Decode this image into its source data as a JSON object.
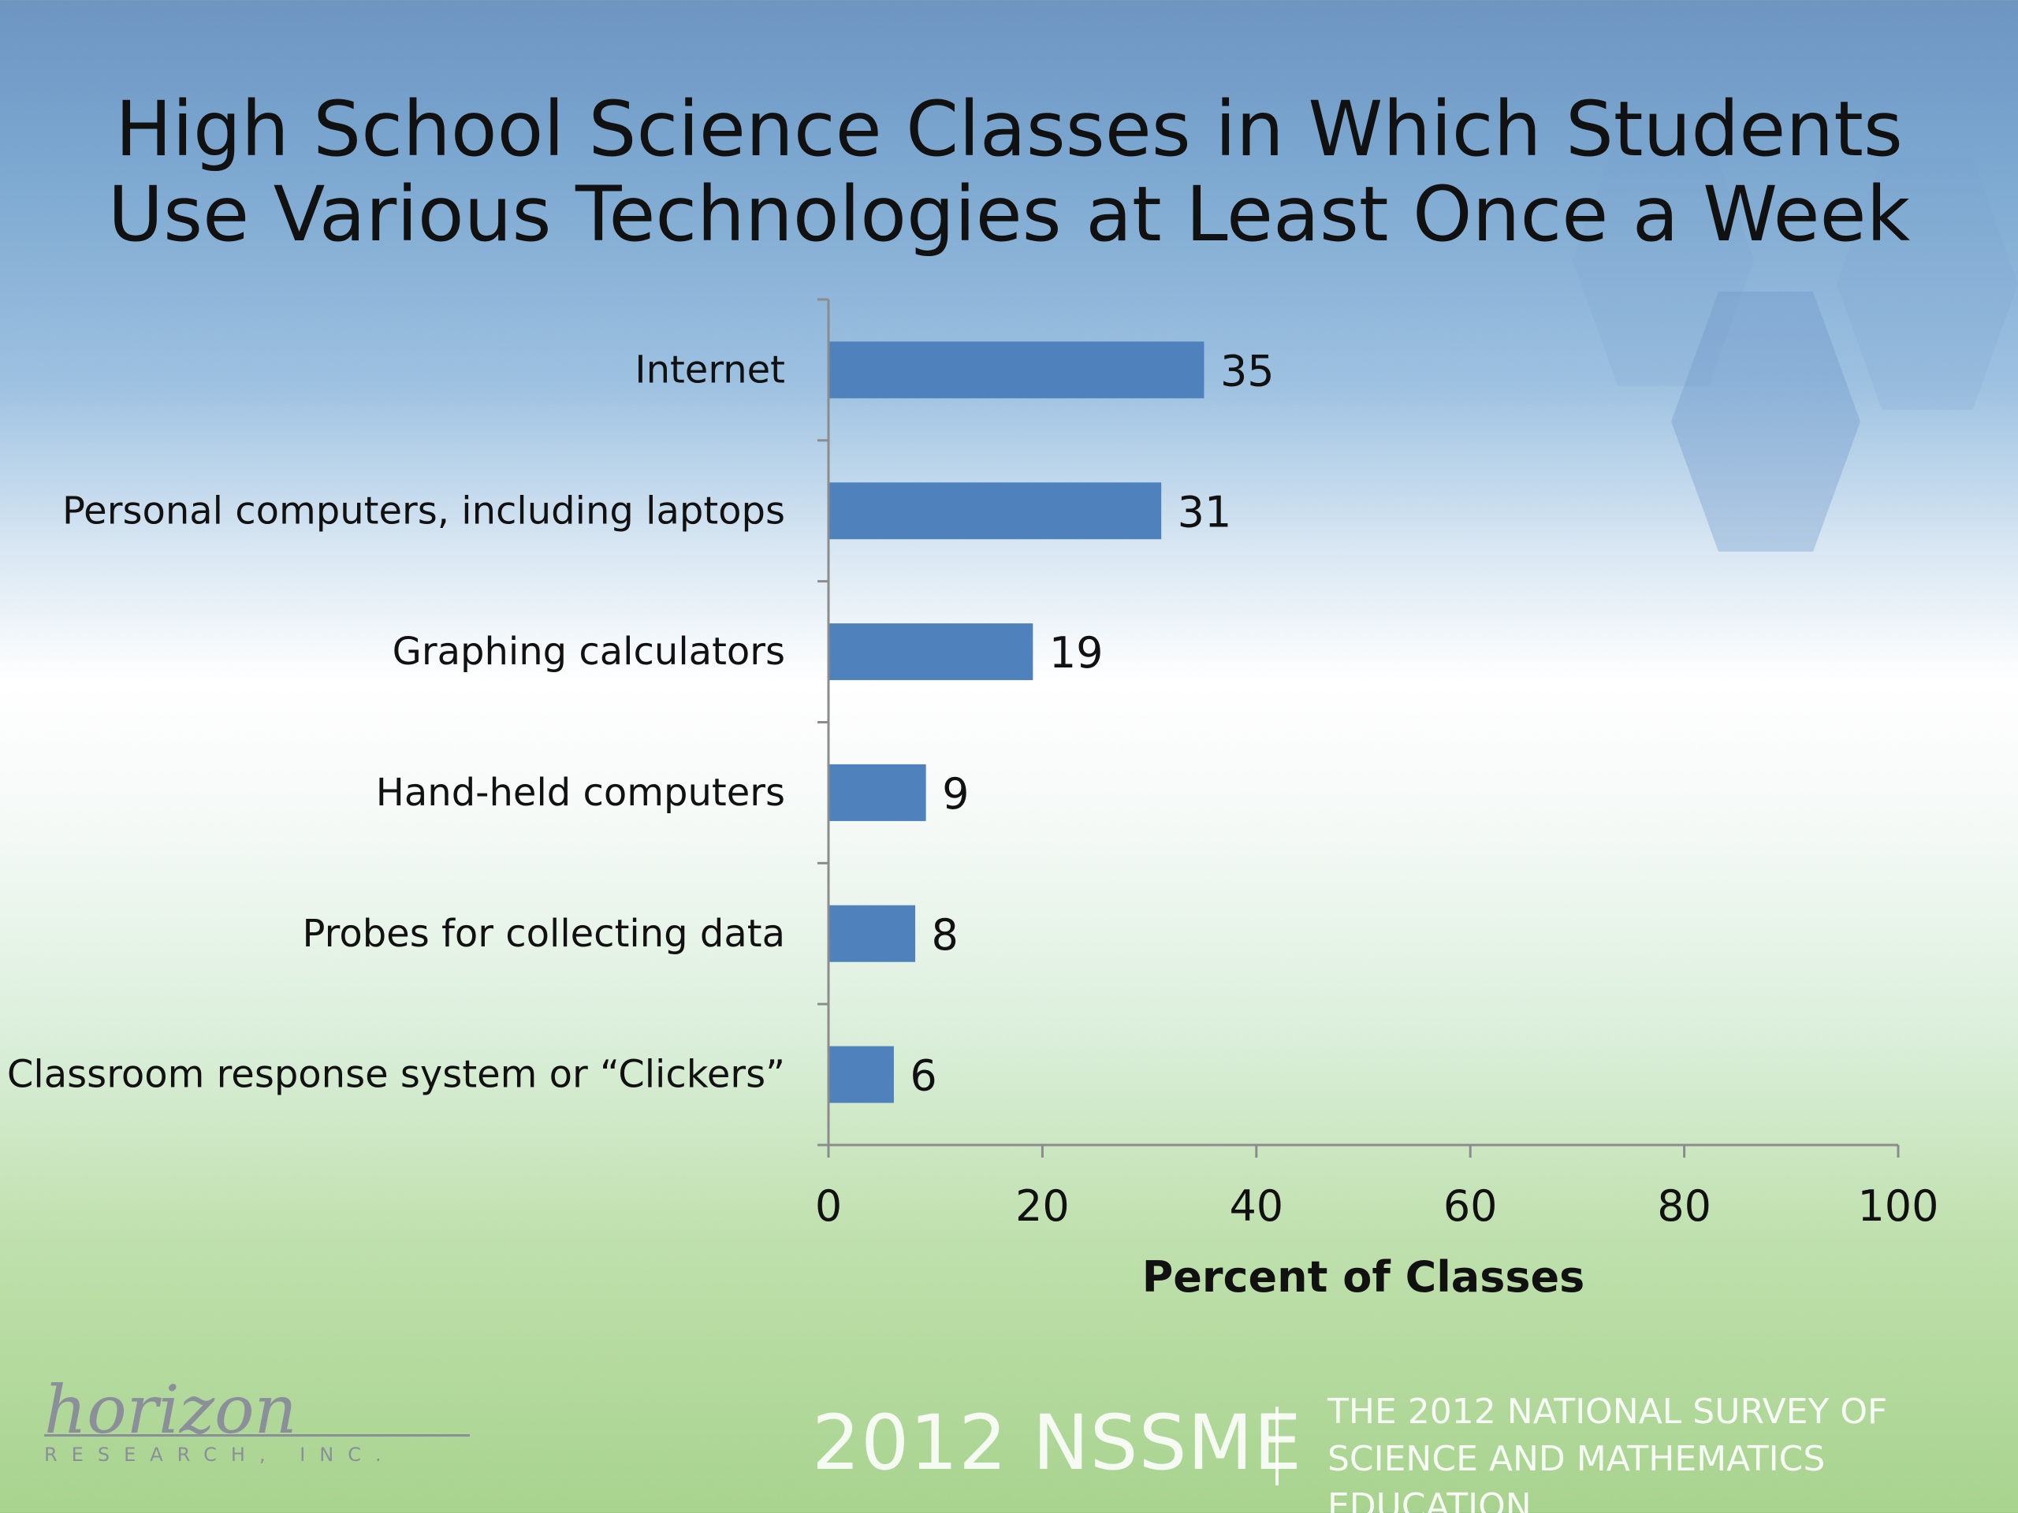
{
  "chart_data": {
    "type": "bar",
    "orientation": "horizontal",
    "title": "High School Science Classes in Which Students Use Various Technologies at Least Once a Week",
    "title_lines": [
      "High School Science Classes in Which Students",
      "Use Various Technologies at Least Once a Week"
    ],
    "categories": [
      "Internet",
      "Personal computers, including laptops",
      "Graphing calculators",
      "Hand-held computers",
      "Probes for collecting data",
      "Classroom response system or “Clickers”"
    ],
    "values": [
      35,
      31,
      19,
      9,
      8,
      6
    ],
    "xlabel": "Percent of Classes",
    "ylabel": "",
    "xlim": [
      0,
      100
    ],
    "xticks": [
      0,
      20,
      40,
      60,
      80,
      100
    ],
    "grid": false,
    "data_labels": true,
    "bar_color": "#4f81bd"
  },
  "footer": {
    "nssme": "2012 NSSME",
    "survey_line1": "THE 2012 NATIONAL SURVEY OF",
    "survey_line2": "SCIENCE AND MATHEMATICS EDUCATION"
  },
  "logo": {
    "word": "horizon",
    "sub": "RESEARCH, INC."
  },
  "colors": {
    "bar": "#4f81bd",
    "axis": "#8c8c8c",
    "text": "#111111"
  }
}
